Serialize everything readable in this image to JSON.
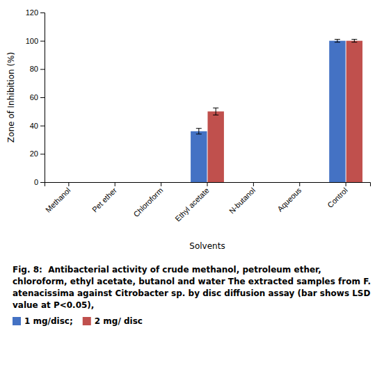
{
  "chart_data": {
    "type": "bar",
    "title": "Fig. 8:  Antibacterial activity of crude methanol, petroleum ether, chloroform, ethyl acetate, butanol and water The extracted samples from F. atenacissima against Citrobacter sp. by disc diffusion assay (bar shows LSD value at P<0.05),",
    "categories": [
      "Methanol",
      "Pet ether",
      "Chloroform",
      "Ethyl acetate",
      "N-butanol",
      "Aqueous",
      "Control"
    ],
    "series": [
      {
        "name": "1 mg/disc;",
        "color": "#4472C4",
        "values": [
          0,
          0,
          0,
          36,
          0,
          0,
          100
        ],
        "errors": [
          0,
          0,
          0,
          2.0,
          0,
          0,
          1.0
        ]
      },
      {
        "name": "2 mg/ disc",
        "color": "#C0504D",
        "values": [
          0,
          0,
          0,
          50,
          0,
          0,
          100
        ],
        "errors": [
          0,
          0,
          0,
          2.5,
          0,
          0,
          1.0
        ]
      }
    ],
    "xlabel": "Solvents",
    "ylabel": "Zone of Inhibition (%)",
    "ylim": [
      0,
      120
    ],
    "yticks": [
      0,
      20,
      40,
      60,
      80,
      100,
      120
    ]
  }
}
